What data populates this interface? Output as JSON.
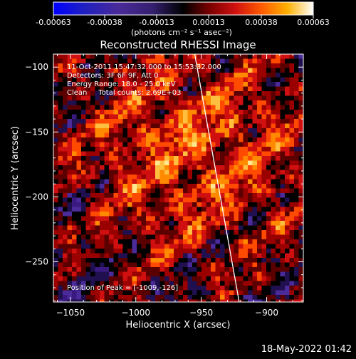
{
  "colorbar": {
    "tick_labels": [
      "-0.00063",
      "-0.00038",
      "-0.00013",
      "0.00013",
      "0.00038",
      "0.00063"
    ],
    "unit_label": "(photons cm⁻² s⁻¹ asec⁻²)",
    "range": [
      -0.00063,
      0.00063
    ]
  },
  "chart_data": {
    "type": "heatmap",
    "title": "Reconstructed RHESSI Image",
    "xlabel": "Heliocentric X (arcsec)",
    "ylabel": "Heliocentric Y (arcsec)",
    "xlim": [
      -1063,
      -872
    ],
    "ylim": [
      -281,
      -90
    ],
    "x_ticks": [
      -1050,
      -1000,
      -950,
      -900
    ],
    "y_ticks": [
      -100,
      -150,
      -200,
      -250
    ],
    "x_tick_labels": [
      "−1050",
      "−1000",
      "−950",
      "−900"
    ],
    "y_tick_labels": [
      "−100",
      "−150",
      "−200",
      "−250"
    ],
    "info_lines": [
      "11-Oct-2011 15:47:32.000 to 15:53:32.000",
      "Detectors: 3F 6F 9F, Att 0",
      "Energy Range: 18.0 - 25.0 keV",
      "Clean     Total counts: 2.69E+03"
    ],
    "peak_label": "Position of Peak = [-1009,-126]",
    "peak_position": [
      -1009,
      -126
    ],
    "limb_line": {
      "start": [
        -955,
        -90
      ],
      "end": [
        -921,
        -281
      ]
    },
    "grid": false
  },
  "timestamp": "18-May-2022 01:42"
}
